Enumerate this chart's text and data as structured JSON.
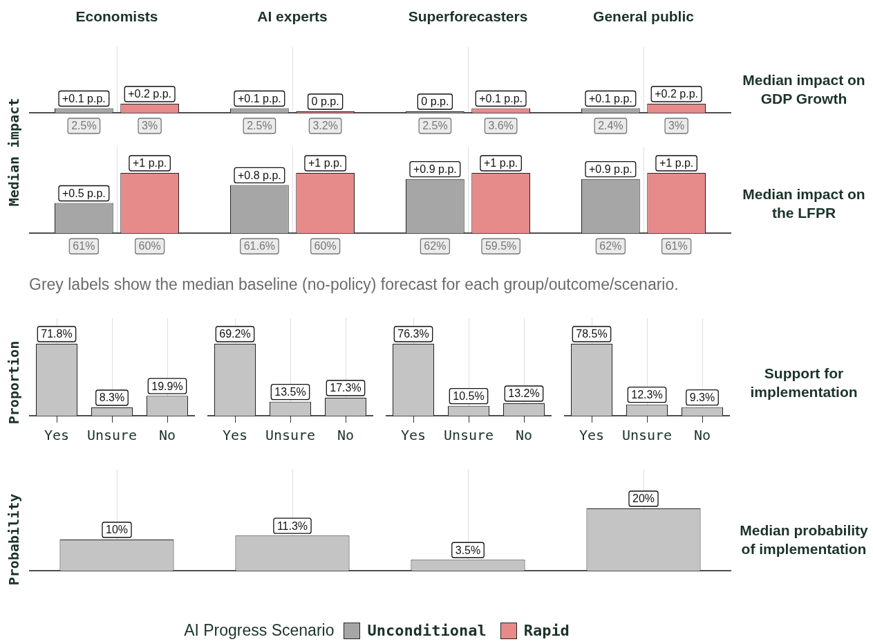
{
  "chart_data": [
    {
      "type": "bar",
      "ylabel": "Median impact",
      "y2label": "Median impact on GDP Growth",
      "legend": "bottom",
      "legend_title": "AI Progress Scenario",
      "categories": [
        "Economists",
        "AI experts",
        "Superforecasters",
        "General public"
      ],
      "grid": "x",
      "tick_labels": "x",
      "annotations": [
        "2.5%",
        "3%",
        "2.5%",
        "3.2%",
        "2.5%",
        "3.6%",
        "2.4%",
        "3%"
      ],
      "series": [
        {
          "name": "Unconditional",
          "color": "#a6a6a6",
          "values": [
            0.1,
            0.1,
            0,
            0.1
          ],
          "value_labels": [
            "+0.1 p.p.",
            "+0.1 p.p.",
            "0 p.p.",
            "+0.1 p.p."
          ]
        },
        {
          "name": "Rapid",
          "color": "#e68a8a",
          "values": [
            0.2,
            0,
            0.1,
            0.2
          ],
          "value_labels": [
            "+0.2 p.p.",
            "0 p.p.",
            "+0.1 p.p.",
            "+0.2 p.p."
          ]
        }
      ]
    },
    {
      "type": "bar",
      "y2label": "Median impact on the LFPR",
      "categories": [
        null,
        null,
        null,
        null
      ],
      "grid": "x",
      "tick_labels": false,
      "annotations": [
        "61%",
        "60%",
        "61.6%",
        "60%",
        "62%",
        "59.5%",
        "62%",
        "61%"
      ],
      "series": [
        {
          "color": "#a6a6a6",
          "values": [
            0.5,
            0.8,
            0.9,
            0.9
          ],
          "value_labels": [
            "+0.5 p.p.",
            "+0.8 p.p.",
            "+0.9 p.p.",
            "+0.9 p.p."
          ]
        },
        {
          "color": "#e68a8a",
          "values": [
            1,
            1,
            1,
            1
          ],
          "value_labels": [
            "+1 p.p.",
            "+1 p.p.",
            "+1 p.p.",
            "+1 p.p."
          ]
        }
      ]
    },
    {
      "type": "bar",
      "subtitle": "Grey labels show the median baseline (no-policy) forecast for each group/outcome/scenario.",
      "ylabel": "Proportion",
      "categories": [
        "Yes",
        "Unsure",
        "No"
      ],
      "tick_labels": "x",
      "grid": "x",
      "series": [
        {
          "color": "#c4c4c4",
          "values": [
            71.8,
            8.3,
            19.9
          ],
          "value_labels": [
            "71.8%",
            "8.3%",
            "19.9%"
          ]
        }
      ]
    },
    {
      "type": "bar",
      "categories": [
        "Yes",
        "Unsure",
        "No"
      ],
      "tick_labels": "x",
      "grid": "x",
      "series": [
        {
          "color": "#c4c4c4",
          "values": [
            69.2,
            13.5,
            17.3
          ],
          "value_labels": [
            "69.2%",
            "13.5%",
            "17.3%"
          ]
        }
      ]
    },
    {
      "type": "bar",
      "categories": [
        "Yes",
        "Unsure",
        "No"
      ],
      "tick_labels": "x",
      "grid": "x",
      "series": [
        {
          "color": "#c4c4c4",
          "values": [
            76.3,
            10.5,
            13.2
          ],
          "value_labels": [
            "76.3%",
            "10.5%",
            "13.2%"
          ]
        }
      ]
    },
    {
      "type": "bar",
      "y2label": "Support for implementation",
      "categories": [
        "Yes",
        "Unsure",
        "No"
      ],
      "tick_labels": "x",
      "grid": "x",
      "series": [
        {
          "color": "#c4c4c4",
          "values": [
            78.5,
            12.3,
            9.3
          ],
          "value_labels": [
            "78.5%",
            "12.3%",
            "9.3%"
          ]
        }
      ]
    },
    {
      "type": "bar",
      "ylabel": "Probability",
      "y2label": "Median probability of implementation",
      "categories": [
        null,
        null,
        null,
        null
      ],
      "tick_labels": false,
      "grid": "x",
      "series": [
        {
          "color": "#c4c4c4",
          "values": [
            10,
            11.3,
            3.5,
            20
          ],
          "value_labels": [
            "10%",
            "11.3%",
            "3.5%",
            "20%"
          ]
        }
      ]
    }
  ]
}
